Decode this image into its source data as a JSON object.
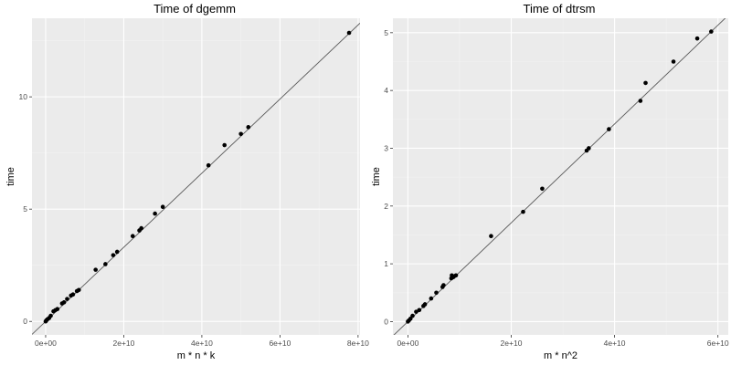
{
  "chart_data": [
    {
      "type": "scatter",
      "title": "Time of dgemm",
      "xlabel": "m * n * k",
      "ylabel": "time",
      "xlim": [
        -3500000000,
        80500000000
      ],
      "ylim": [
        -0.6,
        13.5
      ],
      "x_ticks": [
        0,
        20000000000,
        40000000000,
        60000000000,
        80000000000
      ],
      "x_tick_labels": [
        "0e+00",
        "2e+10",
        "4e+10",
        "6e+10",
        "8e+10"
      ],
      "y_ticks": [
        0,
        5,
        10
      ],
      "y_tick_labels": [
        "0",
        "5",
        "10"
      ],
      "grid": true,
      "colors": {
        "panel": "#ebebeb",
        "points": "#000000",
        "line": "#595959"
      },
      "fit_line": {
        "slope": 1.65e-10,
        "intercept": 0.0
      },
      "series": [
        {
          "x": [
            0,
            200000000,
            500000000,
            900000000,
            1300000000,
            2000000000,
            2500000000,
            3000000000,
            4200000000,
            4700000000,
            5500000000,
            6500000000,
            7000000000,
            8000000000,
            8500000000,
            12800000000,
            15300000000,
            17300000000,
            18300000000,
            22300000000,
            24000000000,
            24500000000,
            28000000000,
            30000000000,
            41700000000,
            45800000000,
            50000000000,
            51900000000,
            77700000000
          ],
          "y": [
            0.0,
            0.05,
            0.1,
            0.15,
            0.25,
            0.45,
            0.5,
            0.55,
            0.8,
            0.85,
            1.0,
            1.15,
            1.2,
            1.35,
            1.4,
            2.3,
            2.55,
            2.95,
            3.1,
            3.8,
            4.05,
            4.15,
            4.8,
            5.1,
            6.95,
            7.85,
            8.35,
            8.65,
            12.85
          ]
        }
      ]
    },
    {
      "type": "scatter",
      "title": "Time of dtrsm",
      "xlabel": "m * n^2",
      "ylabel": "time",
      "xlim": [
        -2900000000,
        62000000000
      ],
      "ylim": [
        -0.23,
        5.25
      ],
      "x_ticks": [
        0,
        20000000000,
        40000000000,
        60000000000
      ],
      "x_tick_labels": [
        "0e+00",
        "2e+10",
        "4e+10",
        "6e+10"
      ],
      "y_ticks": [
        0,
        1,
        2,
        3,
        4,
        5
      ],
      "y_tick_labels": [
        "0",
        "1",
        "2",
        "3",
        "4",
        "5"
      ],
      "grid": true,
      "colors": {
        "panel": "#ebebeb",
        "points": "#000000",
        "line": "#595959"
      },
      "fit_line": {
        "slope": 8.55e-11,
        "intercept": 0.0
      },
      "series": [
        {
          "x": [
            0,
            200000000,
            500000000,
            900000000,
            1600000000,
            2200000000,
            3000000000,
            3300000000,
            4500000000,
            5500000000,
            6700000000,
            6900000000,
            8400000000,
            8500000000,
            8800000000,
            8900000000,
            9300000000,
            16100000000,
            22300000000,
            26000000000,
            34600000000,
            35000000000,
            38900000000,
            45000000000,
            46000000000,
            51400000000,
            56000000000,
            58700000000
          ],
          "y": [
            0.0,
            0.02,
            0.05,
            0.1,
            0.17,
            0.2,
            0.27,
            0.3,
            0.4,
            0.5,
            0.6,
            0.63,
            0.75,
            0.8,
            0.77,
            0.78,
            0.8,
            1.48,
            1.9,
            2.3,
            2.96,
            3.0,
            3.33,
            3.82,
            4.13,
            4.5,
            4.9,
            5.02
          ]
        }
      ]
    }
  ]
}
